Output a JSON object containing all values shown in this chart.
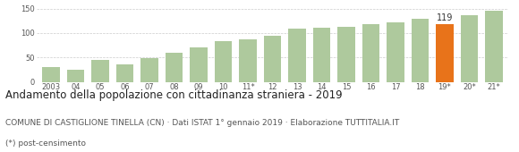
{
  "categories": [
    "2003",
    "04",
    "05",
    "06",
    "07",
    "08",
    "09",
    "10",
    "11*",
    "12",
    "13",
    "14",
    "15",
    "16",
    "17",
    "18",
    "19*",
    "20*",
    "21*"
  ],
  "values": [
    30,
    26,
    46,
    37,
    48,
    60,
    70,
    83,
    87,
    94,
    109,
    110,
    112,
    118,
    121,
    130,
    119,
    137,
    146
  ],
  "bar_colors": [
    "#aec99d",
    "#aec99d",
    "#aec99d",
    "#aec99d",
    "#aec99d",
    "#aec99d",
    "#aec99d",
    "#aec99d",
    "#aec99d",
    "#aec99d",
    "#aec99d",
    "#aec99d",
    "#aec99d",
    "#aec99d",
    "#aec99d",
    "#aec99d",
    "#e8731a",
    "#aec99d",
    "#aec99d"
  ],
  "highlight_index": 16,
  "highlight_value": 119,
  "ylim": [
    0,
    155
  ],
  "yticks": [
    0,
    50,
    100,
    150
  ],
  "title": "Andamento della popolazione con cittadinanza straniera - 2019",
  "subtitle": "COMUNE DI CASTIGLIONE TINELLA (CN) · Dati ISTAT 1° gennaio 2019 · Elaborazione TUTTITALIA.IT",
  "footnote": "(*) post-censimento",
  "title_fontsize": 8.5,
  "subtitle_fontsize": 6.5,
  "footnote_fontsize": 6.5,
  "tick_fontsize": 6.0,
  "background_color": "#ffffff",
  "grid_color": "#cccccc"
}
